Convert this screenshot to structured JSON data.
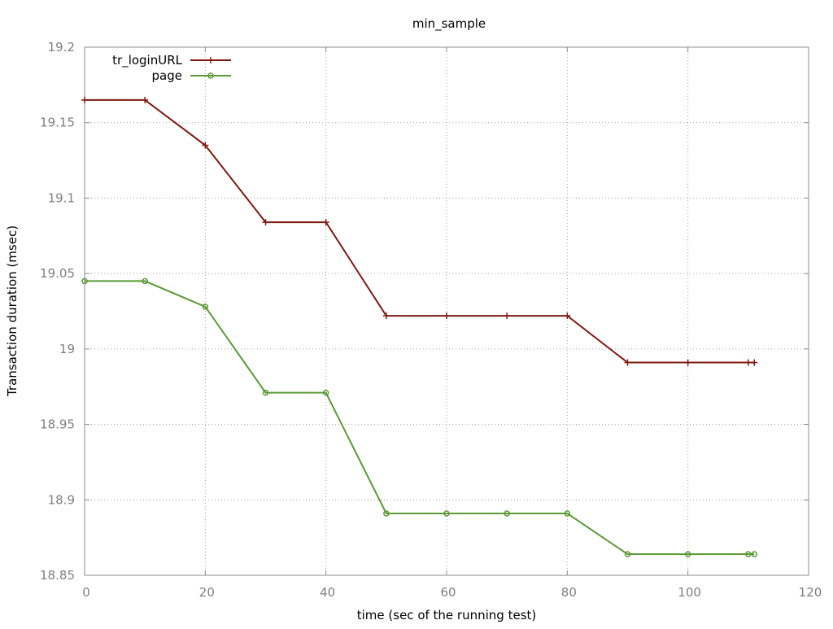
{
  "chart_data": {
    "type": "line",
    "title": "min_sample",
    "xlabel": "time (sec of the running test)",
    "ylabel": "Transaction duration (msec)",
    "xlim": [
      0,
      120
    ],
    "ylim": [
      18.85,
      19.2
    ],
    "xticks": [
      0,
      20,
      40,
      60,
      80,
      100,
      120
    ],
    "yticks": [
      18.85,
      18.9,
      18.95,
      19,
      19.05,
      19.1,
      19.15,
      19.2
    ],
    "xtick_labels": [
      "0",
      "20",
      "40",
      "60",
      "80",
      "100",
      "120"
    ],
    "ytick_labels": [
      "18.85",
      "18.9",
      "18.95",
      "19",
      "19.05",
      "19.1",
      "19.15",
      "19.2"
    ],
    "grid": true,
    "legend": "top-left",
    "x": [
      0,
      10,
      20,
      30,
      40,
      50,
      60,
      70,
      80,
      90,
      100,
      110,
      111
    ],
    "series": [
      {
        "name": "tr_loginURL",
        "color": "#7f1a10",
        "marker": "plus",
        "values": [
          19.165,
          19.165,
          19.135,
          19.084,
          19.084,
          19.022,
          19.022,
          19.022,
          19.022,
          18.991,
          18.991,
          18.991,
          18.991
        ]
      },
      {
        "name": "page",
        "color": "#5a9a35",
        "marker": "circle",
        "values": [
          19.045,
          19.045,
          19.028,
          18.971,
          18.971,
          18.891,
          18.891,
          18.891,
          18.891,
          18.864,
          18.864,
          18.864,
          18.864
        ]
      }
    ]
  }
}
